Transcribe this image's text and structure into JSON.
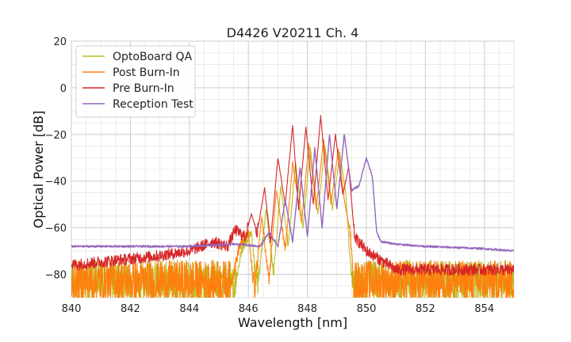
{
  "chart_data": {
    "type": "line",
    "title": "D4426 V20211 Ch. 4",
    "xlabel": "Wavelength [nm]",
    "ylabel": "Optical Power [dB]",
    "xlim": [
      840,
      855
    ],
    "ylim": [
      -90,
      20
    ],
    "xticks": [
      "840",
      "842",
      "844",
      "846",
      "848",
      "850",
      "852",
      "854"
    ],
    "yticks": [
      "20",
      "0",
      "−20",
      "−40",
      "−60",
      "−80"
    ],
    "grid": true,
    "legend_position": "top-left",
    "series": [
      {
        "name": "OptoBoard QA",
        "color": "#bcbd22",
        "noise_floor": true,
        "x": [
          840.0,
          845.5,
          845.8,
          846.1,
          846.3,
          846.6,
          846.85,
          847.1,
          847.35,
          847.6,
          847.85,
          848.1,
          848.35,
          848.6,
          848.85,
          849.1,
          849.3,
          849.45,
          849.6,
          855.0
        ],
        "y": [
          -90,
          -90,
          -68,
          -63,
          -88,
          -52,
          -80,
          -42,
          -68,
          -32,
          -60,
          -26,
          -54,
          -25,
          -52,
          -28,
          -45,
          -75,
          -90,
          -90
        ]
      },
      {
        "name": "Post Burn-In",
        "color": "#ff7f0e",
        "noise_floor": true,
        "x": [
          840.0,
          845.3,
          845.7,
          846.0,
          846.2,
          846.45,
          846.7,
          846.95,
          847.25,
          847.5,
          847.8,
          848.05,
          848.3,
          848.55,
          848.8,
          849.05,
          849.25,
          849.45,
          849.6,
          855.0
        ],
        "y": [
          -90,
          -90,
          -68,
          -62,
          -88,
          -55,
          -82,
          -44,
          -70,
          -32,
          -58,
          -24,
          -52,
          -22,
          -50,
          -26,
          -48,
          -62,
          -90,
          -90
        ]
      },
      {
        "name": "Pre Burn-In",
        "color": "#d62728",
        "noise_floor": true,
        "x": [
          840.0,
          841.5,
          843.0,
          844.0,
          844.8,
          845.3,
          845.55,
          845.9,
          846.1,
          846.3,
          846.55,
          846.75,
          847.0,
          847.25,
          847.5,
          847.7,
          847.95,
          848.2,
          848.45,
          848.7,
          848.95,
          849.2,
          849.4,
          849.6,
          850.0,
          850.5,
          851.0
        ],
        "y": [
          -76,
          -74,
          -72,
          -70,
          -66,
          -68,
          -61,
          -64,
          -54,
          -62,
          -43,
          -66,
          -30,
          -50,
          -16,
          -52,
          -17,
          -50,
          -12,
          -48,
          -20,
          -46,
          -34,
          -64,
          -70,
          -74,
          -78
        ]
      },
      {
        "name": "Reception Test",
        "color": "#9467bd",
        "x": [
          840.0,
          842.0,
          844.0,
          845.5,
          846.4,
          846.7,
          847.0,
          847.25,
          847.5,
          847.75,
          848.0,
          848.25,
          848.5,
          848.75,
          849.0,
          849.25,
          849.5,
          849.75,
          850.0,
          850.2,
          850.35,
          850.5,
          851.0,
          852.0,
          854.0,
          855.0
        ],
        "y": [
          -68,
          -68,
          -68,
          -67,
          -68,
          -62,
          -68,
          -48,
          -66,
          -34,
          -64,
          -26,
          -60,
          -20,
          -52,
          -20,
          -44,
          -42,
          -30,
          -38,
          -62,
          -66,
          -67,
          -68,
          -69,
          -70
        ]
      }
    ]
  }
}
